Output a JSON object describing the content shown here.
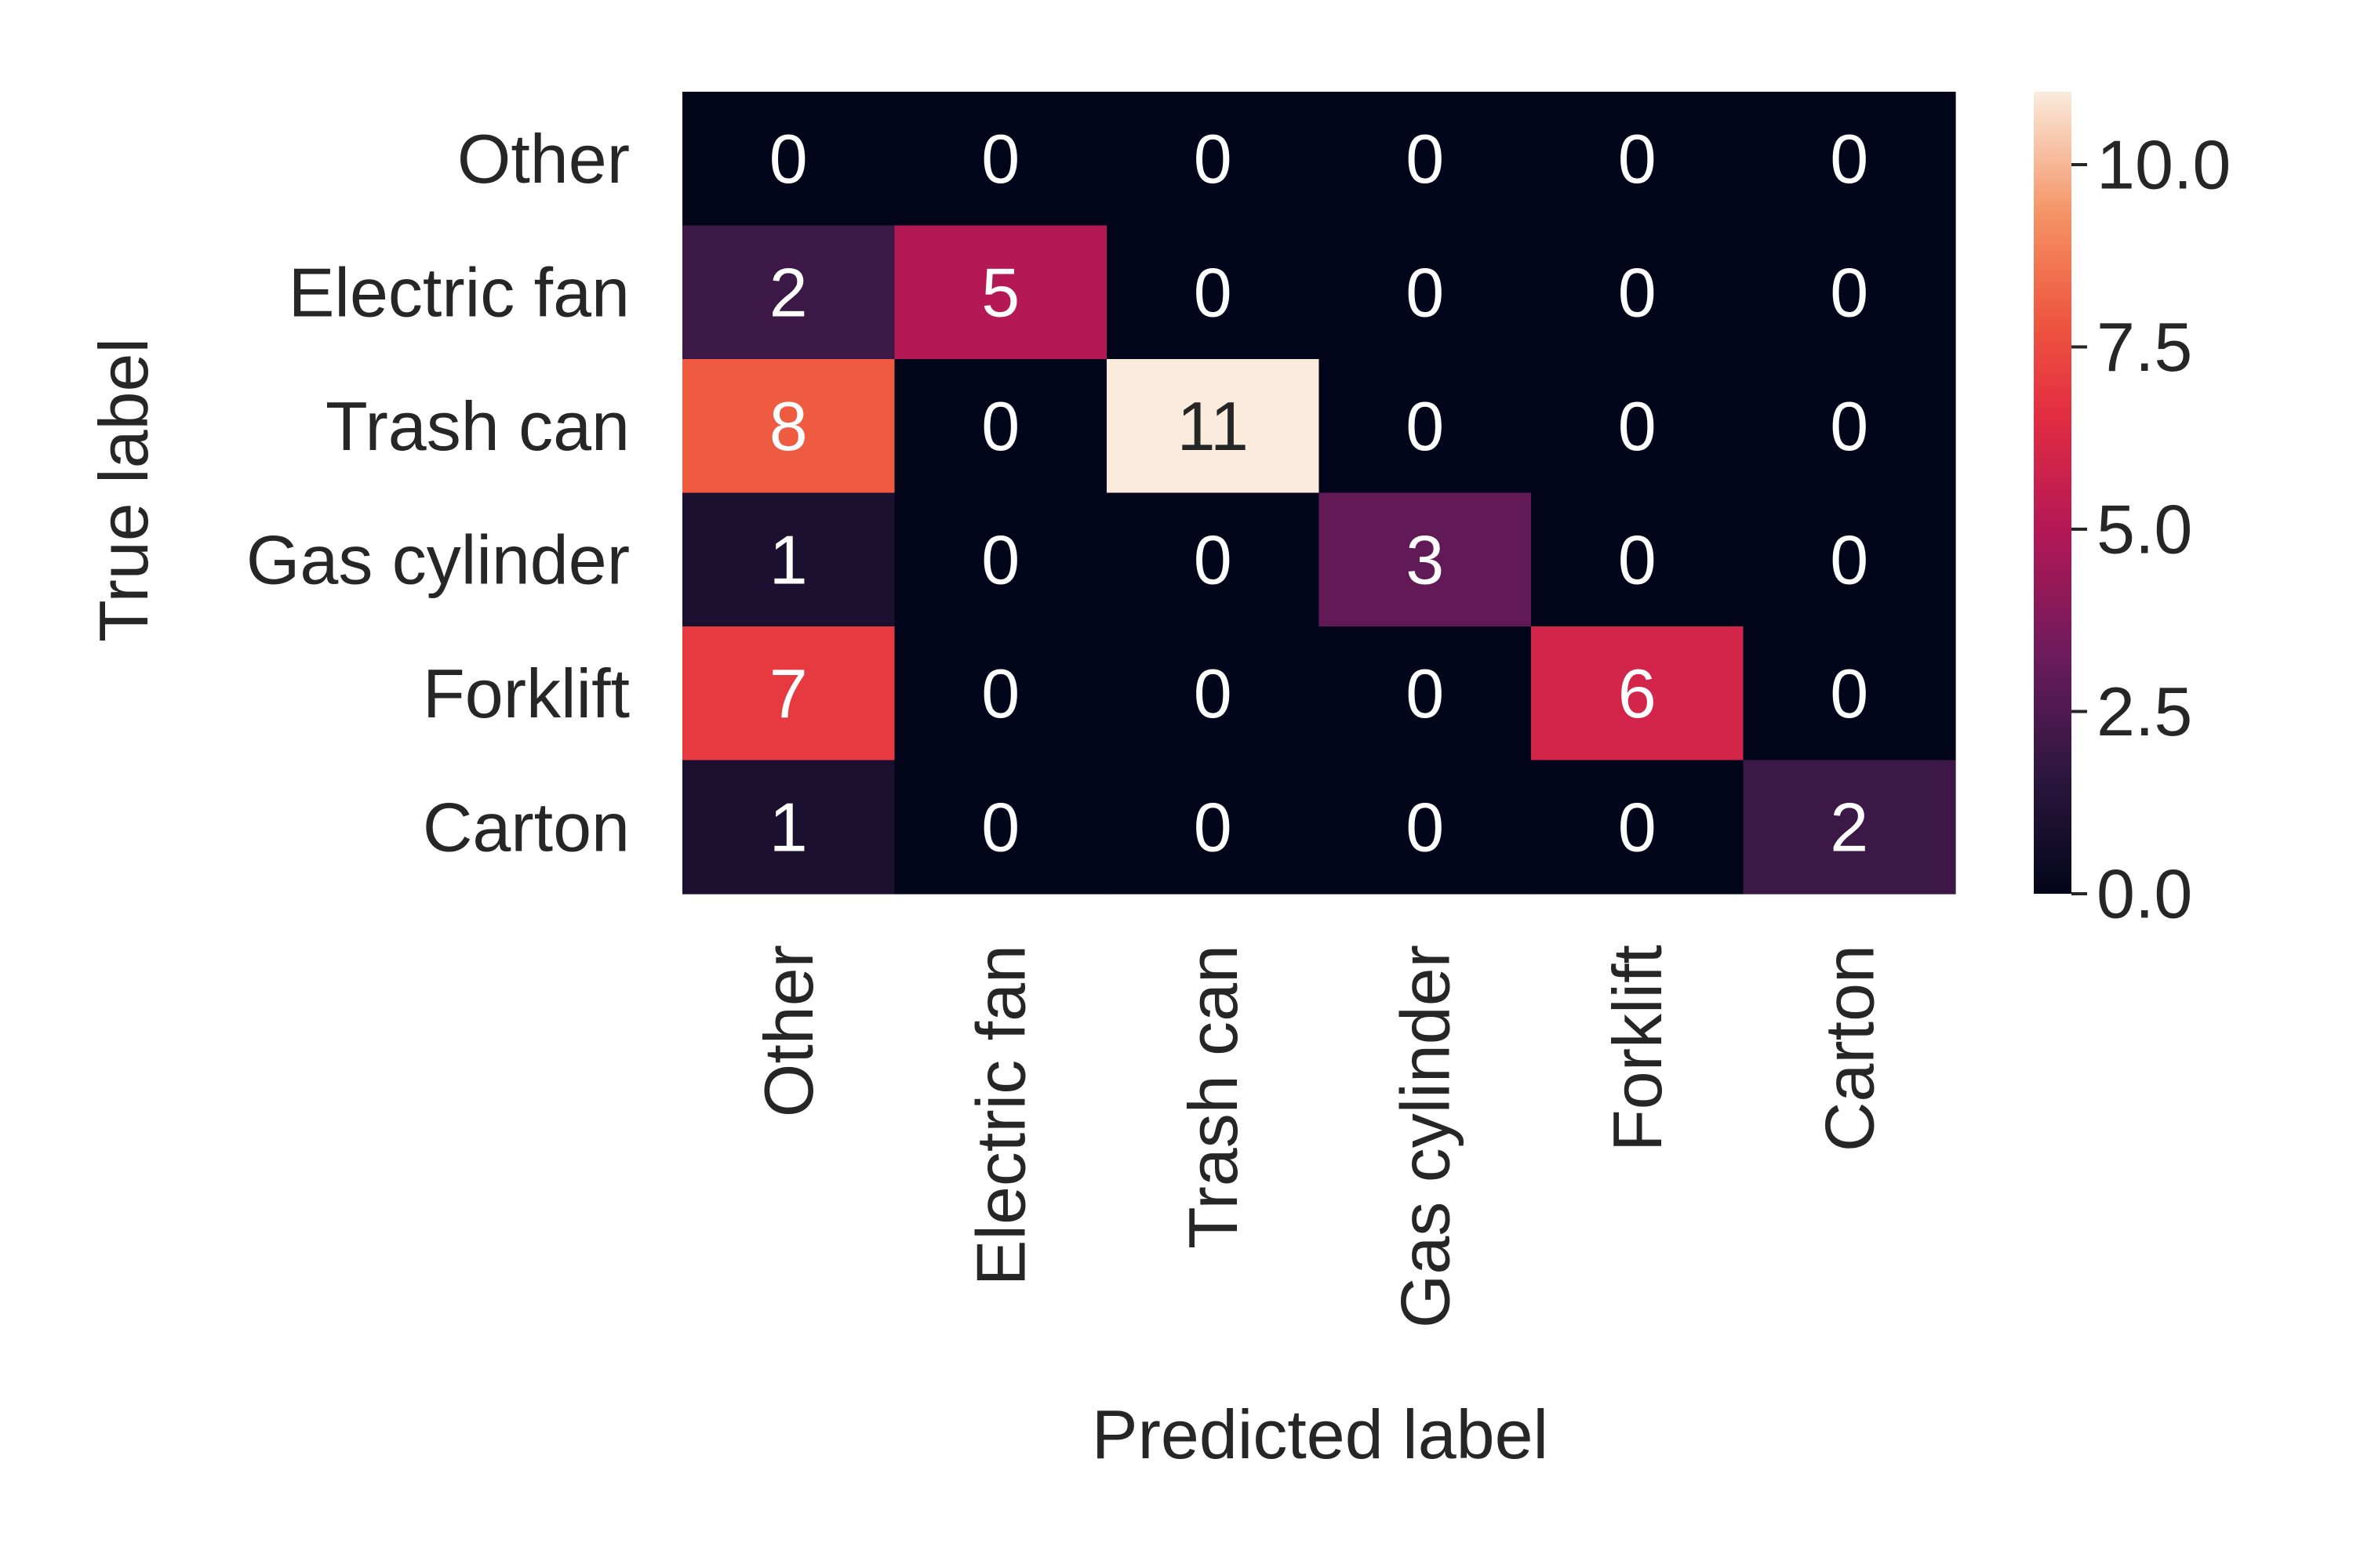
{
  "chart_data": {
    "type": "heatmap",
    "title": "",
    "xlabel": "Predicted label",
    "ylabel": "True label",
    "x_categories": [
      "Other",
      "Electric fan",
      "Trash can",
      "Gas cylinder",
      "Forklift",
      "Carton"
    ],
    "y_categories": [
      "Other",
      "Electric fan",
      "Trash can",
      "Gas cylinder",
      "Forklift",
      "Carton"
    ],
    "values": [
      [
        0,
        0,
        0,
        0,
        0,
        0
      ],
      [
        2,
        5,
        0,
        0,
        0,
        0
      ],
      [
        8,
        0,
        11,
        0,
        0,
        0
      ],
      [
        1,
        0,
        0,
        3,
        0,
        0
      ],
      [
        7,
        0,
        0,
        0,
        6,
        0
      ],
      [
        1,
        0,
        0,
        0,
        0,
        2
      ]
    ],
    "colorbar": {
      "range": [
        0,
        11
      ],
      "ticks": [
        0.0,
        2.5,
        5.0,
        7.5,
        10.0
      ],
      "tick_labels": [
        "0.0",
        "2.5",
        "5.0",
        "7.5",
        "10.0"
      ],
      "colormap": "rocket"
    },
    "annotation_colors": {
      "on_dark": "#ffffff",
      "on_light": "#262626"
    },
    "grid": false,
    "legend": "colorbar-right"
  }
}
